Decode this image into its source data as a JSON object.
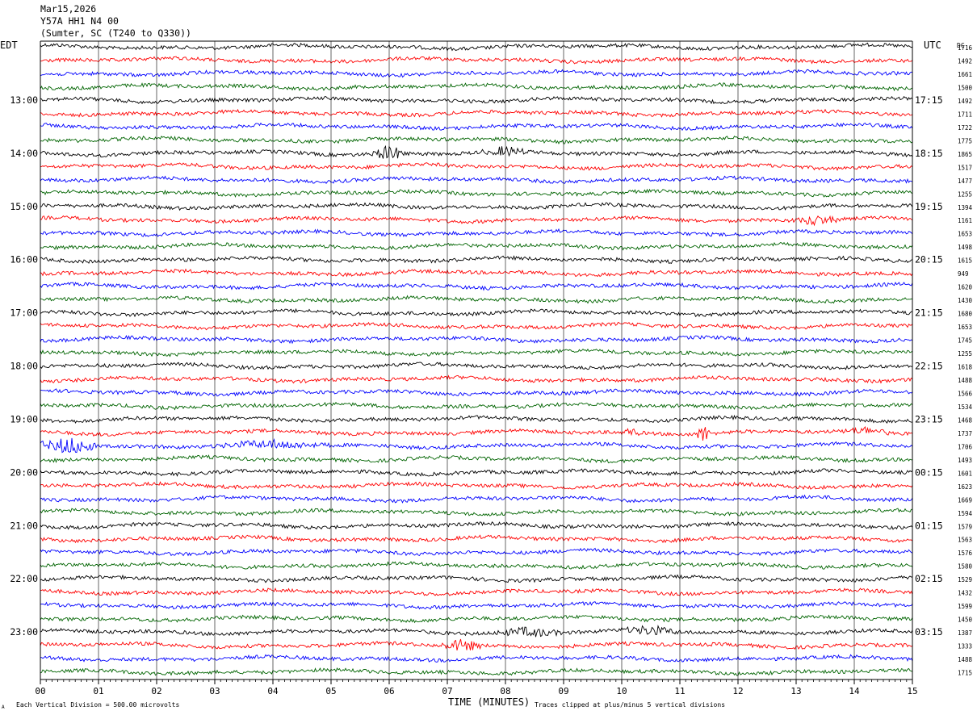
{
  "header": {
    "date": "Mar15,2026",
    "station": "Y57A HH1 N4 00",
    "location": "(Sumter, SC (T240 to Q330))"
  },
  "left_axis_label": "EDT",
  "right_axis_label": "UTC",
  "dc_label": "DC",
  "footer": {
    "scale_note": "Each Vertical Division =  500.00 microvolts",
    "xlabel": "TIME (MINUTES)",
    "clip_note": "Traces clipped at plus/minus 5 vertical divisions",
    "corner_mark": "A"
  },
  "colors": {
    "trace_cycle": [
      "#000000",
      "#ff0000",
      "#0000ff",
      "#006400"
    ],
    "grid": "#000000"
  },
  "chart_data": {
    "type": "line",
    "title": "Y57A HH1 N4 00",
    "xlabel": "TIME (MINUTES)",
    "xlim": [
      0,
      15
    ],
    "x_ticks": [
      "00",
      "01",
      "02",
      "03",
      "04",
      "05",
      "06",
      "07",
      "08",
      "09",
      "10",
      "11",
      "12",
      "13",
      "14",
      "15"
    ],
    "left_time_labels": [
      "13:00",
      "14:00",
      "15:00",
      "16:00",
      "17:00",
      "18:00",
      "19:00",
      "20:00",
      "21:00",
      "22:00",
      "23:00"
    ],
    "right_time_labels": [
      "17:15",
      "18:15",
      "19:15",
      "20:15",
      "21:15",
      "22:15",
      "23:15",
      "00:15",
      "01:15",
      "02:15",
      "03:15"
    ],
    "first_labeled_row": 4,
    "rows_per_hour": 4,
    "dc_values": [
      1716,
      1492,
      1661,
      1500,
      1492,
      1711,
      1722,
      1775,
      1865,
      1517,
      1477,
      1255,
      1394,
      1161,
      1653,
      1498,
      1615,
      949,
      1620,
      1430,
      1680,
      1653,
      1745,
      1255,
      1618,
      1488,
      1566,
      1534,
      1468,
      1737,
      1706,
      1493,
      1601,
      1623,
      1669,
      1594,
      1579,
      1563,
      1576,
      1580,
      1529,
      1432,
      1599,
      1450,
      1387,
      1333,
      1488,
      1715
    ],
    "events": [
      {
        "row": 8,
        "start_min": 5.7,
        "end_min": 6.3,
        "amp": 9
      },
      {
        "row": 8,
        "start_min": 7.6,
        "end_min": 8.4,
        "amp": 5
      },
      {
        "row": 30,
        "start_min": 0.0,
        "end_min": 1.0,
        "amp": 10
      },
      {
        "row": 30,
        "start_min": 3.0,
        "end_min": 5.0,
        "amp": 4
      },
      {
        "row": 29,
        "start_min": 11.3,
        "end_min": 11.5,
        "amp": 14
      },
      {
        "row": 29,
        "start_min": 10.0,
        "end_min": 10.3,
        "amp": 5
      },
      {
        "row": 29,
        "start_min": 13.8,
        "end_min": 14.6,
        "amp": 4
      },
      {
        "row": 13,
        "start_min": 12.9,
        "end_min": 13.8,
        "amp": 5
      },
      {
        "row": 45,
        "start_min": 6.9,
        "end_min": 7.6,
        "amp": 7
      },
      {
        "row": 44,
        "start_min": 7.8,
        "end_min": 9.0,
        "amp": 5
      },
      {
        "row": 44,
        "start_min": 10.0,
        "end_min": 11.0,
        "amp": 5
      }
    ],
    "grid": true
  }
}
